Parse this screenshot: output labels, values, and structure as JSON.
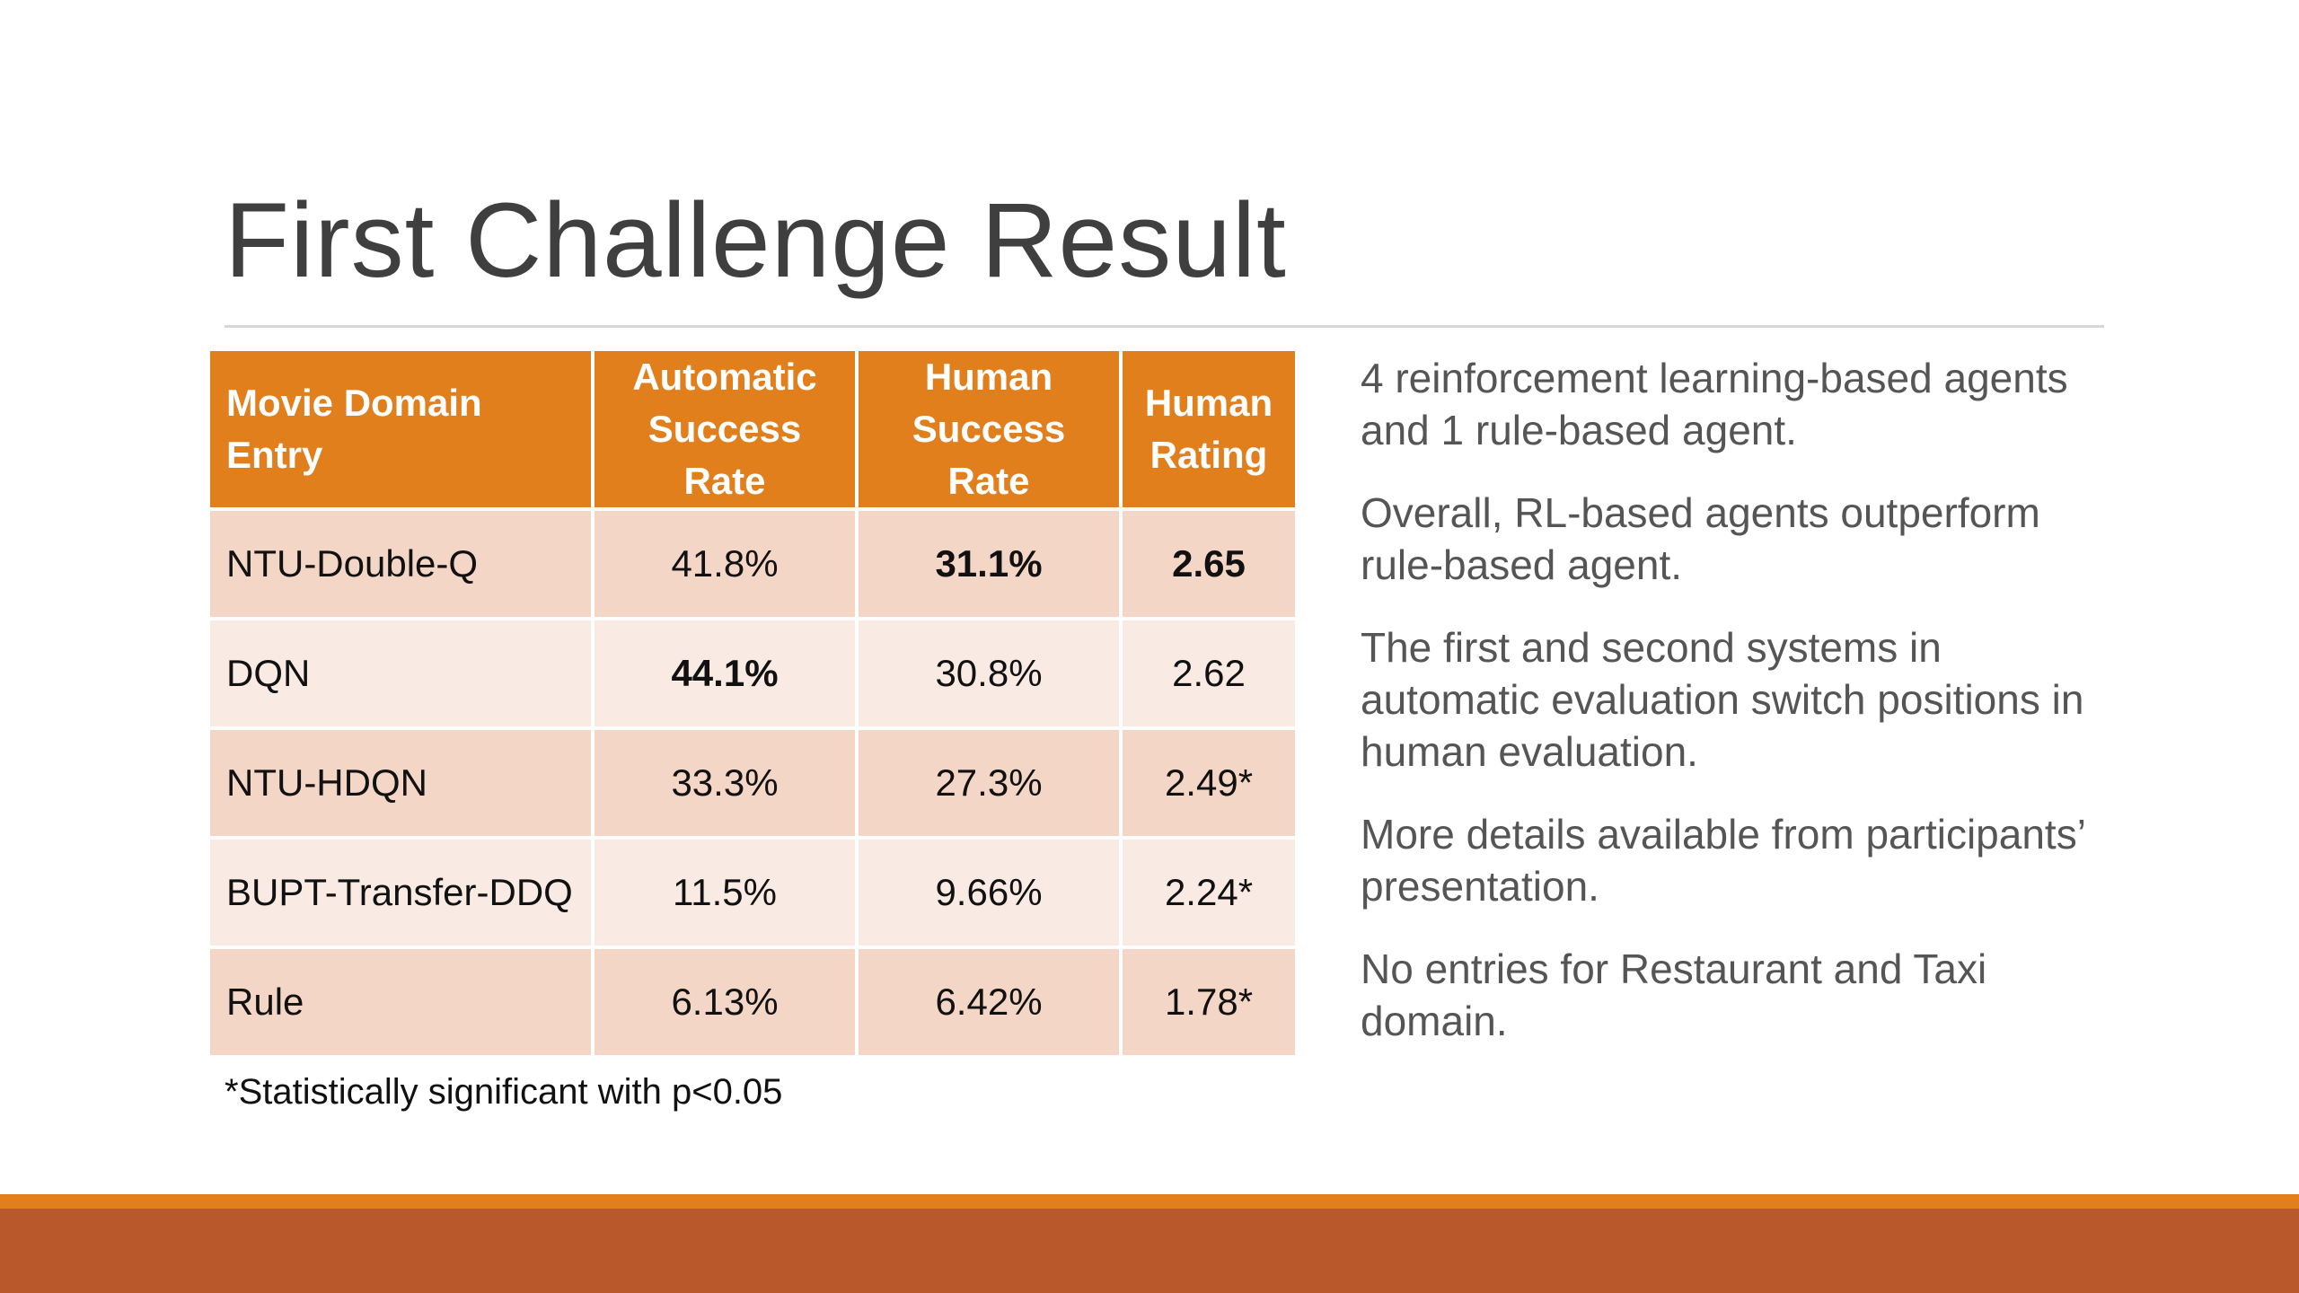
{
  "slide": {
    "title": "First Challenge Result",
    "footnote": "*Statistically significant with p<0.05"
  },
  "table": {
    "headers": {
      "entry_line1": "Movie Domain",
      "entry_line2": "Entry",
      "auto_line1": "Automatic",
      "auto_line2": "Success Rate",
      "human_line1": "Human",
      "human_line2": "Success Rate",
      "rating_line1": "Human",
      "rating_line2": "Rating"
    },
    "rows": [
      {
        "entry": "NTU-Double-Q",
        "auto": "41.8%",
        "human": "31.1%",
        "rating": "2.65"
      },
      {
        "entry": "DQN",
        "auto": "44.1%",
        "human": "30.8%",
        "rating": "2.62"
      },
      {
        "entry": "NTU-HDQN",
        "auto": "33.3%",
        "human": "27.3%",
        "rating": "2.49*"
      },
      {
        "entry": "BUPT-Transfer-DDQ",
        "auto": "11.5%",
        "human": "9.66%",
        "rating": "2.24*"
      },
      {
        "entry": "Rule",
        "auto": "6.13%",
        "human": "6.42%",
        "rating": "1.78*"
      }
    ]
  },
  "notes": [
    "4 reinforcement learning-based agents and 1 rule-based agent.",
    "Overall, RL-based agents outperform rule-based agent.",
    "The first and second systems in automatic evaluation switch positions in human evaluation.",
    "More details available from participants’ presentation.",
    "No entries for Restaurant and Taxi domain."
  ],
  "colors": {
    "header_orange": "#e07f1c",
    "row_dark": "#f4d6c7",
    "row_light": "#f9ebe4",
    "footer_rust": "#b9582b"
  }
}
